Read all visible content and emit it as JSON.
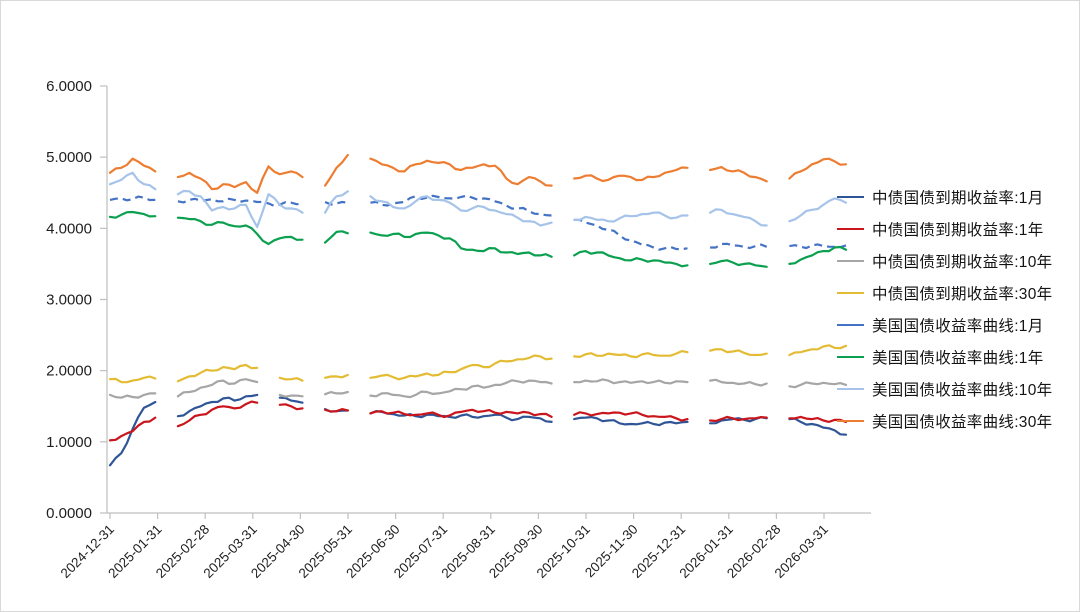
{
  "page": {
    "background_color": "#ffffff",
    "border_color": "#d9d9d9",
    "axis_color": "#bfbfbf",
    "text_color": "#1f1f1f"
  },
  "chart_data": {
    "type": "line",
    "title": "",
    "xlabel": "",
    "ylabel": "",
    "grid": false,
    "legend_position": "right",
    "ylim": [
      0,
      6
    ],
    "y_axis": {
      "min": 0,
      "max": 6,
      "tick_labels": [
        "0.0000",
        "1.0000",
        "2.0000",
        "3.0000",
        "4.0000",
        "5.0000",
        "6.0000"
      ]
    },
    "x_axis": {
      "tick_labels": [
        "2024-12-31",
        "2025-01-31",
        "2025-02-28",
        "2025-03-31",
        "2025-04-30",
        "2025-05-31",
        "2025-06-30",
        "2025-07-31",
        "2025-08-31",
        "2025-09-30",
        "2025-10-31",
        "2025-11-30",
        "2025-12-31",
        "2026-01-31",
        "2026-02-28",
        "2026-03-31"
      ],
      "note": "daily yield data sampled weekly; null = market holiday gap"
    },
    "series": [
      {
        "id": "cn-1m",
        "name": "中债国债到期收益率:1月",
        "color": "#2F5597",
        "values": [
          0.67,
          0.84,
          1.18,
          1.48,
          1.56,
          null,
          1.36,
          1.43,
          1.5,
          1.56,
          1.61,
          1.58,
          1.64,
          1.66,
          null,
          1.62,
          1.58,
          1.55,
          null,
          1.46,
          1.43,
          1.44,
          null,
          1.4,
          1.42,
          1.39,
          1.37,
          1.36,
          1.38,
          1.36,
          1.35,
          1.37,
          1.35,
          1.36,
          1.38,
          1.34,
          1.32,
          1.35,
          1.33,
          1.28,
          null,
          1.32,
          1.34,
          1.33,
          1.3,
          1.26,
          1.25,
          1.26,
          1.25,
          1.27,
          1.26,
          1.28,
          null,
          1.26,
          1.3,
          1.32,
          1.31,
          1.32,
          1.33,
          null,
          1.32,
          1.28,
          1.25,
          1.2,
          1.16,
          1.1
        ]
      },
      {
        "id": "cn-1y",
        "name": "中债国债到期收益率:1年",
        "color": "#C9151B",
        "values": [
          1.02,
          1.08,
          1.15,
          1.28,
          1.34,
          null,
          1.22,
          1.3,
          1.38,
          1.45,
          1.5,
          1.47,
          1.53,
          1.55,
          null,
          1.52,
          1.5,
          1.47,
          null,
          1.45,
          1.43,
          1.44,
          null,
          1.4,
          1.43,
          1.41,
          1.39,
          1.38,
          1.4,
          1.38,
          1.37,
          1.42,
          1.45,
          1.43,
          1.41,
          1.42,
          1.4,
          1.41,
          1.39,
          1.35,
          null,
          1.38,
          1.4,
          1.39,
          1.4,
          1.41,
          1.4,
          1.38,
          1.36,
          1.35,
          1.33,
          1.32,
          null,
          1.3,
          1.32,
          1.33,
          1.32,
          1.33,
          1.34,
          null,
          1.33,
          1.35,
          1.32,
          1.3,
          1.31,
          1.28
        ]
      },
      {
        "id": "cn-10y",
        "name": "中债国债到期收益率:10年",
        "color": "#A6A6A6",
        "values": [
          1.66,
          1.62,
          1.63,
          1.66,
          1.68,
          null,
          1.64,
          1.7,
          1.76,
          1.8,
          1.86,
          1.82,
          1.88,
          1.84,
          null,
          1.66,
          1.65,
          1.64,
          null,
          1.67,
          1.68,
          1.7,
          null,
          1.65,
          1.68,
          1.66,
          1.64,
          1.66,
          1.7,
          1.68,
          1.71,
          1.74,
          1.78,
          1.76,
          1.8,
          1.83,
          1.85,
          1.86,
          1.84,
          1.82,
          null,
          1.84,
          1.86,
          1.85,
          1.86,
          1.84,
          1.83,
          1.85,
          1.84,
          1.83,
          1.85,
          1.84,
          null,
          1.86,
          1.84,
          1.83,
          1.82,
          1.81,
          1.82,
          null,
          1.78,
          1.8,
          1.82,
          1.83,
          1.81,
          1.8
        ]
      },
      {
        "id": "cn-30y",
        "name": "中债国债到期收益率:30年",
        "color": "#E3BC33",
        "values": [
          1.88,
          1.84,
          1.86,
          1.9,
          1.89,
          null,
          1.85,
          1.92,
          1.97,
          2.0,
          2.05,
          2.02,
          2.08,
          2.04,
          null,
          1.9,
          1.88,
          1.86,
          null,
          1.9,
          1.92,
          1.94,
          null,
          1.9,
          1.93,
          1.91,
          1.9,
          1.92,
          1.96,
          1.94,
          1.98,
          2.02,
          2.08,
          2.05,
          2.1,
          2.13,
          2.16,
          2.18,
          2.2,
          2.17,
          null,
          2.2,
          2.23,
          2.21,
          2.24,
          2.22,
          2.2,
          2.23,
          2.22,
          2.21,
          2.24,
          2.26,
          null,
          2.28,
          2.3,
          2.27,
          2.25,
          2.22,
          2.24,
          null,
          2.22,
          2.26,
          2.3,
          2.34,
          2.32,
          2.35
        ]
      },
      {
        "id": "us-1m",
        "name": "美国国债收益率曲线:1月",
        "color": "#4472C4",
        "dash": "8 5",
        "values": [
          4.4,
          4.42,
          4.41,
          4.43,
          4.4,
          null,
          4.38,
          4.4,
          4.39,
          4.41,
          4.38,
          4.4,
          4.39,
          4.37,
          4.35,
          4.33,
          4.36,
          4.34,
          null,
          4.37,
          4.35,
          4.36,
          null,
          4.36,
          4.33,
          4.35,
          4.37,
          4.45,
          4.43,
          4.44,
          4.42,
          4.44,
          4.43,
          4.42,
          4.38,
          4.32,
          4.28,
          4.24,
          4.2,
          4.18,
          null,
          4.12,
          4.08,
          4.04,
          3.98,
          3.9,
          3.83,
          3.77,
          3.73,
          3.72,
          3.71,
          3.72,
          null,
          3.73,
          3.78,
          3.76,
          3.74,
          3.75,
          3.74,
          null,
          3.75,
          3.74,
          3.76,
          3.75,
          3.74,
          3.76
        ]
      },
      {
        "id": "us-1y",
        "name": "美国国债收益率曲线:1年",
        "color": "#0BA04F",
        "values": [
          4.16,
          4.19,
          4.23,
          4.2,
          4.17,
          null,
          4.15,
          4.13,
          4.1,
          4.05,
          4.08,
          4.03,
          4.04,
          3.92,
          3.78,
          3.86,
          3.88,
          3.84,
          null,
          3.8,
          3.95,
          3.93,
          null,
          3.94,
          3.9,
          3.92,
          3.88,
          3.92,
          3.94,
          3.9,
          3.86,
          3.72,
          3.7,
          3.68,
          3.72,
          3.66,
          3.64,
          3.66,
          3.62,
          3.6,
          null,
          3.62,
          3.68,
          3.66,
          3.62,
          3.58,
          3.55,
          3.56,
          3.55,
          3.52,
          3.5,
          3.48,
          null,
          3.5,
          3.54,
          3.52,
          3.5,
          3.48,
          3.46,
          null,
          3.5,
          3.56,
          3.62,
          3.68,
          3.73,
          3.7
        ]
      },
      {
        "id": "us-10y",
        "name": "美国国债收益率曲线:10年",
        "color": "#A6C3E9",
        "values": [
          4.62,
          4.68,
          4.78,
          4.62,
          4.55,
          null,
          4.48,
          4.52,
          4.45,
          4.25,
          4.3,
          4.28,
          4.33,
          4.02,
          4.48,
          4.33,
          4.28,
          4.22,
          null,
          4.22,
          4.45,
          4.52,
          null,
          4.45,
          4.38,
          4.3,
          4.28,
          4.38,
          4.45,
          4.4,
          4.36,
          4.25,
          4.28,
          4.3,
          4.25,
          4.2,
          4.15,
          4.1,
          4.04,
          4.08,
          null,
          4.12,
          4.16,
          4.12,
          4.1,
          4.14,
          4.17,
          4.2,
          4.22,
          4.18,
          4.15,
          4.18,
          null,
          4.22,
          4.26,
          4.2,
          4.16,
          4.1,
          4.04,
          null,
          4.1,
          4.18,
          4.26,
          4.33,
          4.42,
          4.36
        ]
      },
      {
        "id": "us-30y",
        "name": "美国国债收益率曲线:30年",
        "color": "#ED7D31",
        "values": [
          4.78,
          4.85,
          4.98,
          4.88,
          4.8,
          null,
          4.72,
          4.78,
          4.7,
          4.55,
          4.62,
          4.58,
          4.65,
          4.5,
          4.87,
          4.76,
          4.8,
          4.72,
          null,
          4.6,
          4.85,
          5.03,
          null,
          4.98,
          4.9,
          4.85,
          4.8,
          4.9,
          4.95,
          4.92,
          4.9,
          4.82,
          4.85,
          4.9,
          4.88,
          4.7,
          4.62,
          4.72,
          4.66,
          4.6,
          null,
          4.7,
          4.74,
          4.7,
          4.68,
          4.74,
          4.72,
          4.68,
          4.72,
          4.78,
          4.82,
          4.85,
          null,
          4.82,
          4.86,
          4.8,
          4.78,
          4.72,
          4.66,
          null,
          4.7,
          4.8,
          4.9,
          4.97,
          4.94,
          4.9
        ]
      }
    ]
  }
}
